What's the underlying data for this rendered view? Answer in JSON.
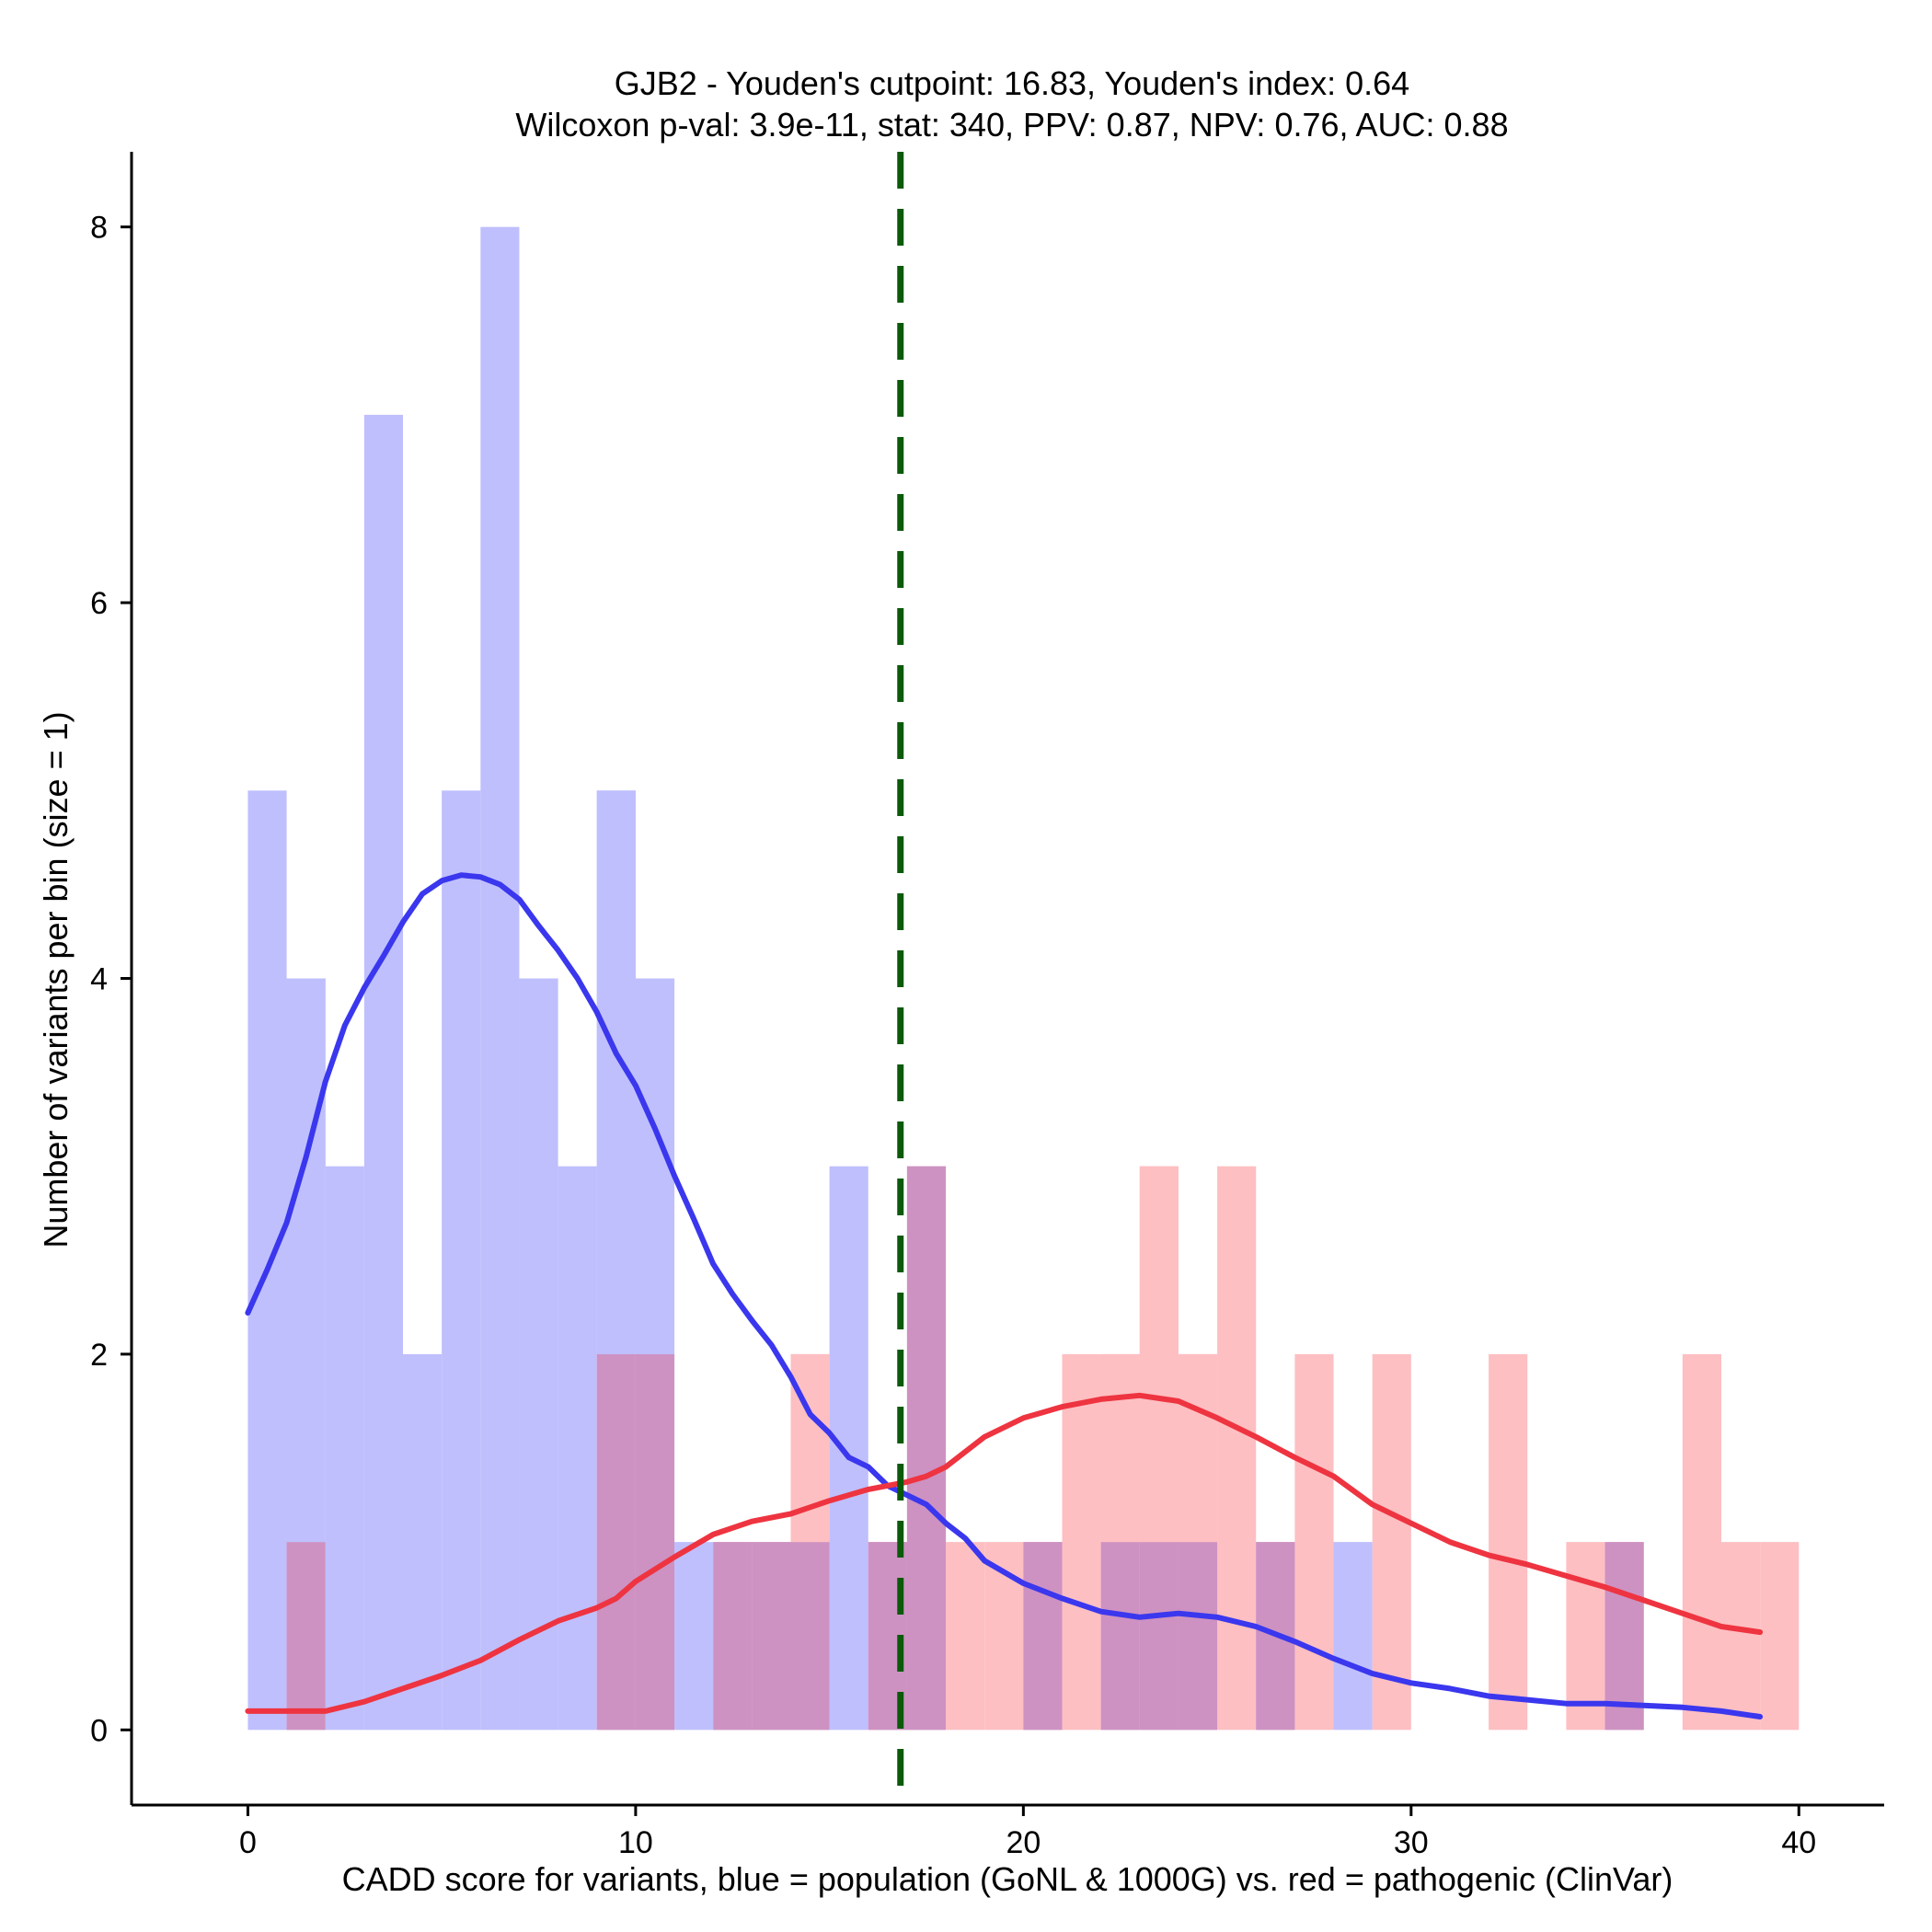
{
  "chart_data": {
    "type": "histogram",
    "title_line1": "GJB2 - Youden's cutpoint: 16.83, Youden's index: 0.64",
    "title_line2": "Wilcoxon p-val: 3.9e-11, stat: 340, PPV: 0.87, NPV: 0.76, AUC: 0.88",
    "xlabel": "CADD score for variants, blue = population (GoNL & 1000G) vs. red = pathogenic (ClinVar)",
    "ylabel": "Number of variants per bin (size = 1)",
    "xlim": [
      -3,
      42.2
    ],
    "ylim": [
      -0.4,
      8.4
    ],
    "x_ticks": [
      0,
      10,
      20,
      30,
      40
    ],
    "x_tick_labels": [
      "0",
      "10",
      "20",
      "30",
      "40"
    ],
    "y_ticks": [
      0,
      2,
      4,
      6,
      8
    ],
    "y_tick_labels": [
      "0",
      "2",
      "4",
      "6",
      "8"
    ],
    "bin_size": 1,
    "cutpoint": 16.83,
    "colors": {
      "population_bar": "#bfbffd",
      "pathogenic_bar": "#fdbfc2",
      "overlap_bar": "#cd92c2",
      "population_line": "#3a37ee",
      "pathogenic_line": "#ee3440",
      "cutpoint_line": "#0a5a0a"
    },
    "series": [
      {
        "name": "population (GoNL & 1000G)",
        "color": "blue",
        "bin_starts": [
          0,
          1,
          2,
          3,
          4,
          5,
          6,
          7,
          8,
          9,
          10,
          11,
          12,
          13,
          14,
          15,
          16,
          17,
          18,
          19,
          20,
          21,
          22,
          23,
          24,
          25,
          26,
          27,
          28,
          29,
          30,
          31,
          32,
          33,
          34,
          35,
          36,
          37,
          38,
          39
        ],
        "counts": [
          5,
          4,
          3,
          7,
          2,
          5,
          8,
          4,
          3,
          5,
          4,
          1,
          1,
          1,
          1,
          3,
          1,
          3,
          0,
          0,
          1,
          0,
          1,
          1,
          1,
          0,
          1,
          0,
          1,
          0,
          0,
          0,
          0,
          0,
          0,
          1,
          0,
          0,
          0,
          0
        ]
      },
      {
        "name": "pathogenic (ClinVar)",
        "color": "red",
        "bin_starts": [
          0,
          1,
          2,
          3,
          4,
          5,
          6,
          7,
          8,
          9,
          10,
          11,
          12,
          13,
          14,
          15,
          16,
          17,
          18,
          19,
          20,
          21,
          22,
          23,
          24,
          25,
          26,
          27,
          28,
          29,
          30,
          31,
          32,
          33,
          34,
          35,
          36,
          37,
          38,
          39
        ],
        "counts": [
          0,
          1,
          0,
          0,
          0,
          0,
          0,
          0,
          0,
          2,
          2,
          0,
          1,
          1,
          2,
          0,
          1,
          3,
          1,
          1,
          1,
          2,
          2,
          3,
          2,
          3,
          1,
          2,
          0,
          2,
          0,
          0,
          2,
          0,
          1,
          1,
          0,
          2,
          1,
          1
        ]
      }
    ],
    "density_lines": [
      {
        "name": "population density",
        "x": [
          0,
          0.5,
          1,
          1.5,
          2,
          2.5,
          3,
          3.5,
          4,
          4.5,
          5,
          5.5,
          6,
          6.5,
          7,
          7.5,
          8,
          8.5,
          9,
          9.5,
          10,
          10.5,
          11,
          11.5,
          12,
          12.5,
          13,
          13.5,
          14,
          14.5,
          15,
          15.5,
          16,
          16.5,
          17,
          17.5,
          18,
          18.5,
          19,
          20,
          21,
          22,
          23,
          24,
          25,
          26,
          27,
          28,
          29,
          30,
          31,
          32,
          33,
          34,
          35,
          36,
          37,
          38,
          39
        ],
        "y": [
          2.22,
          2.45,
          2.7,
          3.05,
          3.45,
          3.75,
          3.95,
          4.12,
          4.3,
          4.45,
          4.52,
          4.55,
          4.54,
          4.5,
          4.42,
          4.28,
          4.15,
          4.0,
          3.82,
          3.6,
          3.43,
          3.2,
          2.95,
          2.72,
          2.48,
          2.32,
          2.18,
          2.05,
          1.88,
          1.68,
          1.58,
          1.45,
          1.4,
          1.3,
          1.25,
          1.2,
          1.1,
          1.02,
          0.9,
          0.78,
          0.7,
          0.63,
          0.6,
          0.62,
          0.6,
          0.55,
          0.47,
          0.38,
          0.3,
          0.25,
          0.22,
          0.18,
          0.16,
          0.14,
          0.14,
          0.13,
          0.12,
          0.1,
          0.07
        ]
      },
      {
        "name": "pathogenic density",
        "x": [
          0,
          1,
          2,
          3,
          4,
          5,
          6,
          7,
          8,
          9,
          9.5,
          10,
          11,
          12,
          13,
          14,
          15,
          16,
          17,
          17.5,
          18,
          19,
          20,
          20.5,
          21,
          22,
          23,
          24,
          25,
          26,
          27,
          28,
          29,
          30,
          31,
          32,
          33,
          34,
          35,
          36,
          37,
          38,
          39
        ],
        "y": [
          0.1,
          0.1,
          0.1,
          0.15,
          0.22,
          0.29,
          0.37,
          0.48,
          0.58,
          0.65,
          0.7,
          0.79,
          0.92,
          1.04,
          1.11,
          1.15,
          1.22,
          1.28,
          1.32,
          1.35,
          1.4,
          1.56,
          1.66,
          1.69,
          1.72,
          1.76,
          1.78,
          1.75,
          1.66,
          1.56,
          1.45,
          1.35,
          1.2,
          1.1,
          1.0,
          0.93,
          0.88,
          0.82,
          0.76,
          0.69,
          0.62,
          0.55,
          0.52
        ]
      }
    ]
  }
}
